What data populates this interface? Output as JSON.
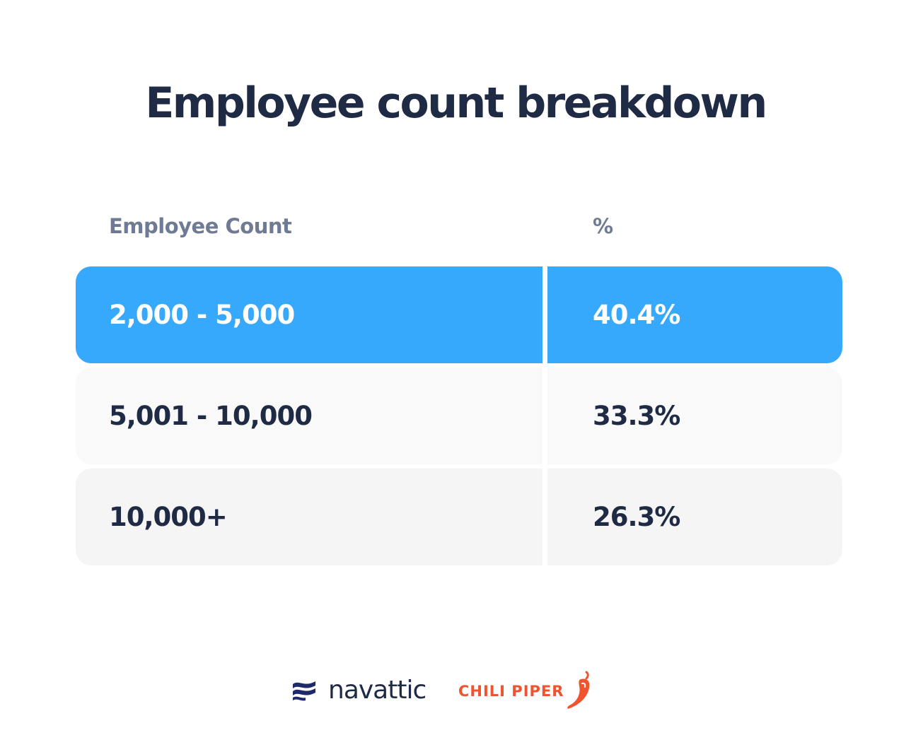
{
  "chart_data": {
    "type": "table",
    "title": "Employee count breakdown",
    "columns": [
      "Employee Count",
      "%"
    ],
    "rows": [
      {
        "range": "2,000 - 5,000",
        "percent": "40.4%",
        "value": 40.4,
        "highlighted": true
      },
      {
        "range": "5,001 - 10,000",
        "percent": "33.3%",
        "value": 33.3,
        "highlighted": false
      },
      {
        "range": "10,000+",
        "percent": "26.3%",
        "value": 26.3,
        "highlighted": false
      }
    ]
  },
  "colors": {
    "highlight_row": "#36a9fd",
    "row_bg_1": "#f9f9f9",
    "row_bg_2": "#f5f5f5",
    "title_text": "#1f2a44",
    "header_text": "#6f7a94",
    "chili_brand": "#f0532d",
    "navattic_brand": "#1f2a6b"
  },
  "footer": {
    "logos": [
      {
        "name": "navattic",
        "icon": "wave-lines-icon"
      },
      {
        "name": "CHILI PIPER",
        "icon": "chili-pepper-icon"
      }
    ]
  }
}
